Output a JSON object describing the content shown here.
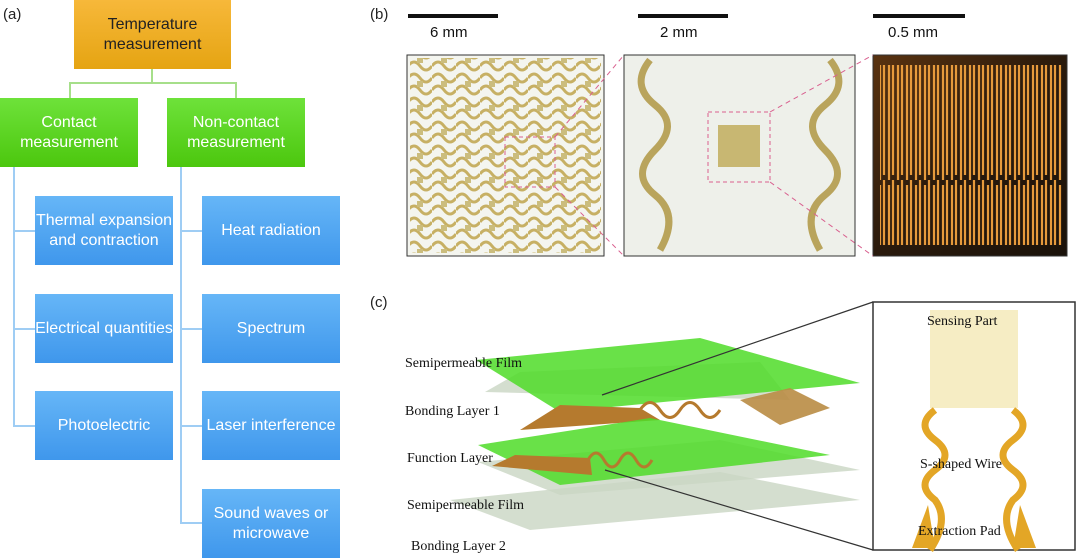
{
  "panel_a": {
    "label": "(a)",
    "root": "Temperature measurement",
    "contact": {
      "title": "Contact measurement",
      "items": [
        "Thermal expansion and contraction",
        "Electrical quantities",
        "Photoelectric"
      ]
    },
    "noncontact": {
      "title": "Non-contact measurement",
      "items": [
        "Heat radiation",
        "Spectrum",
        "Laser interference",
        "Sound waves or microwave"
      ]
    },
    "colors": {
      "root": "#f0ae25",
      "level1": "#5bd422",
      "level2": "#4fa6f0"
    }
  },
  "panel_b": {
    "label": "(b)",
    "scales": [
      "6 mm",
      "2 mm",
      "0.5 mm"
    ]
  },
  "panel_c": {
    "label": "(c)",
    "layers": [
      "Semipermeable  Film",
      "Bonding Layer 1",
      "Function Layer",
      "Semipermeable  Film",
      "Bonding Layer 2"
    ],
    "inset": [
      "Sensing Part",
      "S-shaped Wire",
      "Extraction Pad"
    ]
  }
}
